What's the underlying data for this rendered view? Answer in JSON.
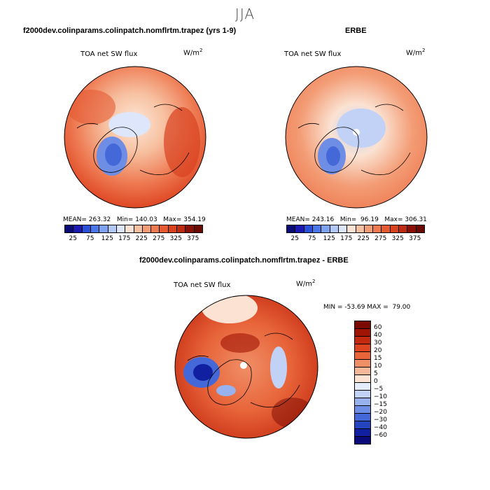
{
  "season": "JJA",
  "panels": {
    "model": {
      "title": "f2000dev.colinparams.colinpatch.nomflrtm.trapez (yrs 1-9)",
      "field": "TOA net SW flux",
      "units_base": "W/m",
      "units_exp": "2",
      "stats": "MEAN= 263.32   Min= 140.03   Max= 354.19"
    },
    "obs": {
      "title": "ERBE",
      "field": "TOA net SW flux",
      "units_base": "W/m",
      "units_exp": "2",
      "stats": "MEAN= 243.16   Min=  96.19   Max= 306.31"
    },
    "diff": {
      "title": "f2000dev.colinparams.colinpatch.nomflrtm.trapez - ERBE",
      "field": "TOA net SW flux",
      "units_base": "W/m",
      "units_exp": "2",
      "stats": "MIN = -53.69 MAX =  79.00"
    }
  },
  "chart_data": [
    {
      "type": "heatmap",
      "projection": "north polar stereographic",
      "title": "f2000dev.colinparams.colinpatch.nomflrtm.trapez (yrs 1-9)",
      "field": "TOA net SW flux",
      "units": "W/m2",
      "mean": 263.32,
      "min": 140.03,
      "max": 354.19,
      "colorbar_levels": [
        25,
        50,
        75,
        100,
        125,
        150,
        175,
        200,
        225,
        250,
        275,
        300,
        325,
        350,
        375
      ],
      "colorbar_labels": [
        "25",
        "75",
        "125",
        "175",
        "225",
        "275",
        "325",
        "375"
      ]
    },
    {
      "type": "heatmap",
      "projection": "north polar stereographic",
      "title": "ERBE",
      "field": "TOA net SW flux",
      "units": "W/m2",
      "mean": 243.16,
      "min": 96.19,
      "max": 306.31,
      "colorbar_levels": [
        25,
        50,
        75,
        100,
        125,
        150,
        175,
        200,
        225,
        250,
        275,
        300,
        325,
        350,
        375
      ],
      "colorbar_labels": [
        "25",
        "75",
        "125",
        "175",
        "225",
        "275",
        "325",
        "375"
      ]
    },
    {
      "type": "heatmap",
      "projection": "north polar stereographic",
      "title": "f2000dev.colinparams.colinpatch.nomflrtm.trapez - ERBE",
      "field": "TOA net SW flux",
      "units": "W/m2",
      "min": -53.69,
      "max": 79.0,
      "colorbar_labels": [
        "60",
        "40",
        "30",
        "20",
        "15",
        "10",
        "5",
        "0",
        "−5",
        "−10",
        "−15",
        "−20",
        "−30",
        "−40",
        "−60"
      ]
    }
  ],
  "colors": {
    "seq": [
      "#0b0b78",
      "#1a1ab0",
      "#2a4fd8",
      "#4a78ea",
      "#7ea2f2",
      "#b2c8f8",
      "#dde6fb",
      "#fbe2d2",
      "#f7c0a0",
      "#f39d76",
      "#ee7a52",
      "#e55a33",
      "#d8421f",
      "#bd2c12",
      "#8a1005",
      "#6a0a02"
    ],
    "div": [
      "#7a0a02",
      "#a01405",
      "#c42a10",
      "#dd4420",
      "#e8653a",
      "#f08e66",
      "#f6b898",
      "#fbe2d2",
      "#e5ecfb",
      "#c2d2f6",
      "#98b2ef",
      "#6e8ee6",
      "#4468d8",
      "#2444c0",
      "#1020a0",
      "#0a0a7a"
    ]
  }
}
